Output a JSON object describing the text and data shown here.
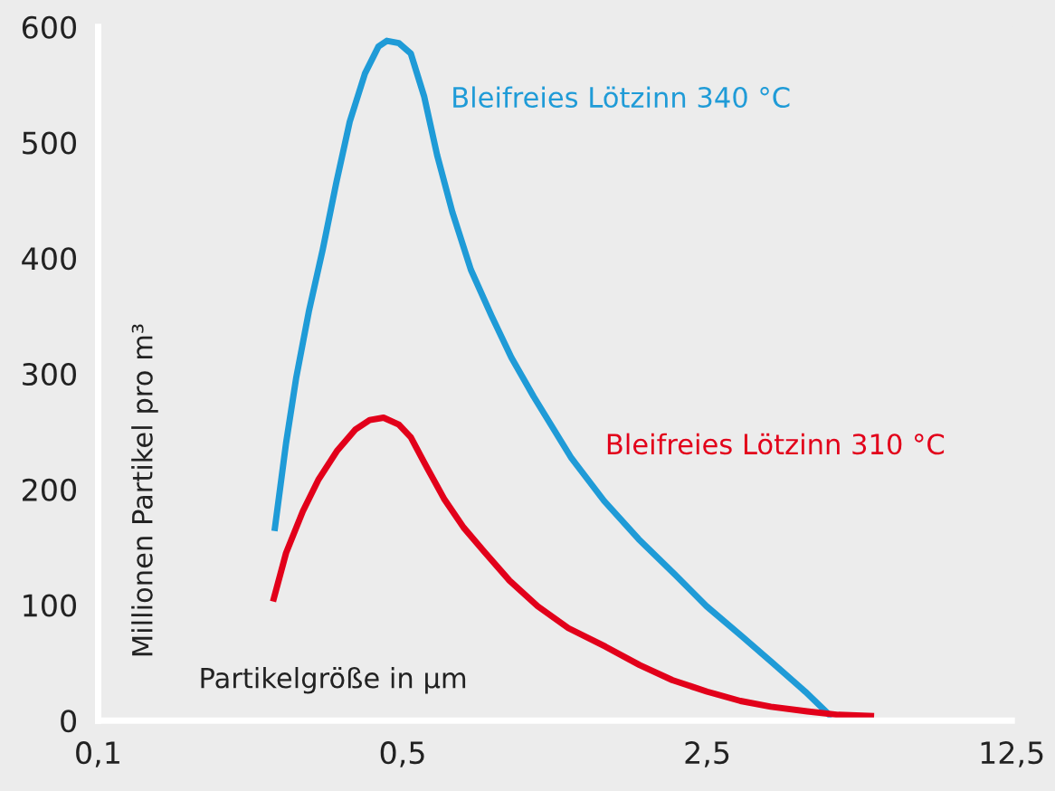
{
  "chart_data": {
    "type": "line",
    "xlabel": "Partikelgröße in µm",
    "ylabel": "Millionen Partikel pro m³",
    "log": "x",
    "xlim": [
      0.1,
      12.5
    ],
    "xticks": [
      {
        "value": 0.1,
        "label": "0,1"
      },
      {
        "value": 0.5,
        "label": "0,5"
      },
      {
        "value": 2.5,
        "label": "2,5"
      },
      {
        "value": 12.5,
        "label": "12,5"
      }
    ],
    "ylim": [
      0,
      600
    ],
    "yticks": [
      0,
      100,
      200,
      300,
      400,
      500,
      600
    ],
    "grid": false,
    "legend": false,
    "marker": "none",
    "line_style": "solid",
    "series": [
      {
        "name": "Bleifreies Lötzinn 340 °C",
        "color": "#1f9bd7",
        "x": [
          0.254,
          0.27,
          0.285,
          0.305,
          0.328,
          0.352,
          0.378,
          0.41,
          0.44,
          0.46,
          0.49,
          0.522,
          0.56,
          0.6,
          0.65,
          0.717,
          0.8,
          0.888,
          1.0,
          1.22,
          1.45,
          1.74,
          2.1,
          2.49,
          3.0,
          3.53,
          4.2,
          4.83
        ],
        "values": [
          164,
          240,
          297,
          355,
          408,
          465,
          518,
          560,
          583,
          588,
          586,
          577,
          540,
          489,
          440,
          390,
          350,
          314,
          280,
          227,
          190,
          157,
          127,
          99,
          73,
          50,
          25,
          3
        ]
      },
      {
        "name": "Bleifreies Lötzinn 310 °C",
        "color": "#e2001a",
        "x": [
          0.252,
          0.27,
          0.295,
          0.32,
          0.353,
          0.39,
          0.42,
          0.452,
          0.49,
          0.522,
          0.57,
          0.622,
          0.69,
          0.77,
          0.88,
          1.02,
          1.2,
          1.46,
          1.75,
          2.08,
          2.5,
          2.98,
          3.5,
          4.24,
          5.0,
          6.04
        ],
        "values": [
          103,
          145,
          181,
          208,
          233,
          252,
          260,
          262,
          256,
          245,
          218,
          192,
          167,
          146,
          121,
          99,
          80,
          64,
          48,
          35,
          25,
          17,
          12,
          8,
          5,
          4
        ]
      }
    ]
  }
}
